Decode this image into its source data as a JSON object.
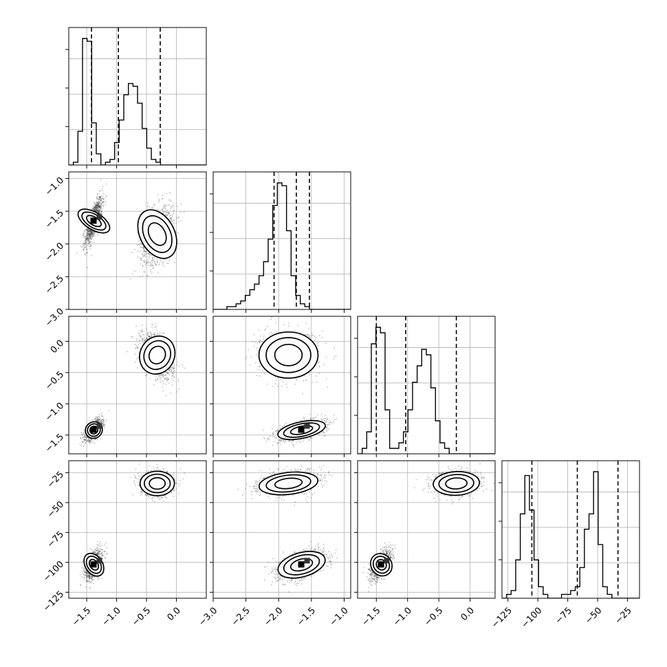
{
  "chart_data": {
    "type": "corner",
    "n_params": 4,
    "grid": true,
    "params": [
      {
        "range": [
          -1.8,
          0.5
        ],
        "ticks": [
          -1.5,
          -1.0,
          -0.5,
          0.0
        ],
        "tick_labels": [
          "−1.5",
          "−1.0",
          "−0.5",
          "0.0"
        ],
        "quantiles": [
          -1.42,
          -0.97,
          -0.27
        ],
        "histogram": {
          "edges_start": -1.8,
          "bin_width": 0.0767,
          "counts": [
            0,
            1,
            12,
            45,
            44,
            15,
            4,
            0,
            1,
            2,
            8,
            16,
            25,
            29,
            28,
            22,
            13,
            6,
            2,
            1,
            0,
            0,
            0,
            0,
            0,
            0,
            0,
            0,
            0,
            0
          ]
        }
      },
      {
        "range": [
          -3.0,
          -0.9
        ],
        "ticks": [
          -3.0,
          -2.5,
          -2.0,
          -1.5,
          -1.0
        ],
        "tick_labels": [
          "−3.0",
          "−2.5",
          "−2.0",
          "−1.5",
          "−1.0"
        ],
        "quantiles": [
          -2.07,
          -1.73,
          -1.53
        ],
        "histogram": {
          "edges_start": -3.0,
          "bin_width": 0.07,
          "counts": [
            0,
            0,
            0,
            1,
            1,
            2,
            3,
            5,
            7,
            9,
            12,
            17,
            25,
            37,
            45,
            44,
            28,
            12,
            5,
            2,
            1,
            0,
            0,
            0,
            0,
            0,
            0,
            0,
            0,
            0
          ]
        }
      },
      {
        "range": [
          -1.8,
          0.4
        ],
        "ticks": [
          -1.5,
          -1.0,
          -0.5,
          0.0
        ],
        "tick_labels": [
          "−1.5",
          "−1.0",
          "−0.5",
          "0.0"
        ],
        "quantiles": [
          -1.5,
          -1.03,
          -0.22
        ],
        "histogram": {
          "edges_start": -1.8,
          "bin_width": 0.0733,
          "counts": [
            0,
            1,
            4,
            20,
            23,
            22,
            8,
            1,
            1,
            2,
            4,
            8,
            13,
            16,
            19,
            18,
            12,
            6,
            2,
            1,
            0,
            0,
            0,
            0,
            0,
            0,
            0,
            0,
            0,
            0
          ]
        }
      },
      {
        "range": [
          -130,
          -15
        ],
        "ticks": [
          -125,
          -100,
          -75,
          -50,
          -25
        ],
        "tick_labels": [
          "−125",
          "−100",
          "−75",
          "−50",
          "−25"
        ],
        "quantiles": [
          -105,
          -67,
          -33
        ],
        "histogram": {
          "edges_start": -130,
          "bin_width": 3.83,
          "counts": [
            0,
            1,
            2,
            10,
            22,
            32,
            23,
            10,
            3,
            1,
            0,
            0,
            0,
            1,
            1,
            2,
            3,
            8,
            18,
            22,
            33,
            14,
            3,
            1,
            0,
            0,
            0,
            0,
            0,
            0
          ]
        }
      }
    ],
    "y_tick_labels": {
      "1": {
        "ticks": [
          -3.0,
          -2.5,
          -2.0,
          -1.5,
          -1.0
        ],
        "labels": [
          "−3.0",
          "−2.5",
          "−2.0",
          "−1.5",
          "−1.0"
        ]
      },
      "2": {
        "ticks": [
          -1.5,
          -1.0,
          -0.5,
          0.0
        ],
        "labels": [
          "−1.5",
          "−1.0",
          "−0.5",
          "0.0"
        ]
      },
      "3": {
        "ticks": [
          -125,
          -100,
          -75,
          -50,
          -25
        ],
        "labels": [
          "−125",
          "−100",
          "−75",
          "−50",
          "−25"
        ]
      }
    },
    "y_ranges": {
      "1": [
        -3.0,
        -0.9
      ],
      "2": [
        -1.8,
        0.4
      ],
      "3": [
        -130,
        -15
      ]
    },
    "modes": [
      {
        "center": [
          -1.38,
          -1.65,
          -1.42,
          -102
        ],
        "sd": [
          0.07,
          0.18,
          0.08,
          6
        ],
        "weight": 0.48
      },
      {
        "center": [
          -0.32,
          -1.85,
          -0.22,
          -34
        ],
        "sd": [
          0.14,
          0.22,
          0.18,
          5
        ],
        "weight": 0.52
      }
    ]
  }
}
